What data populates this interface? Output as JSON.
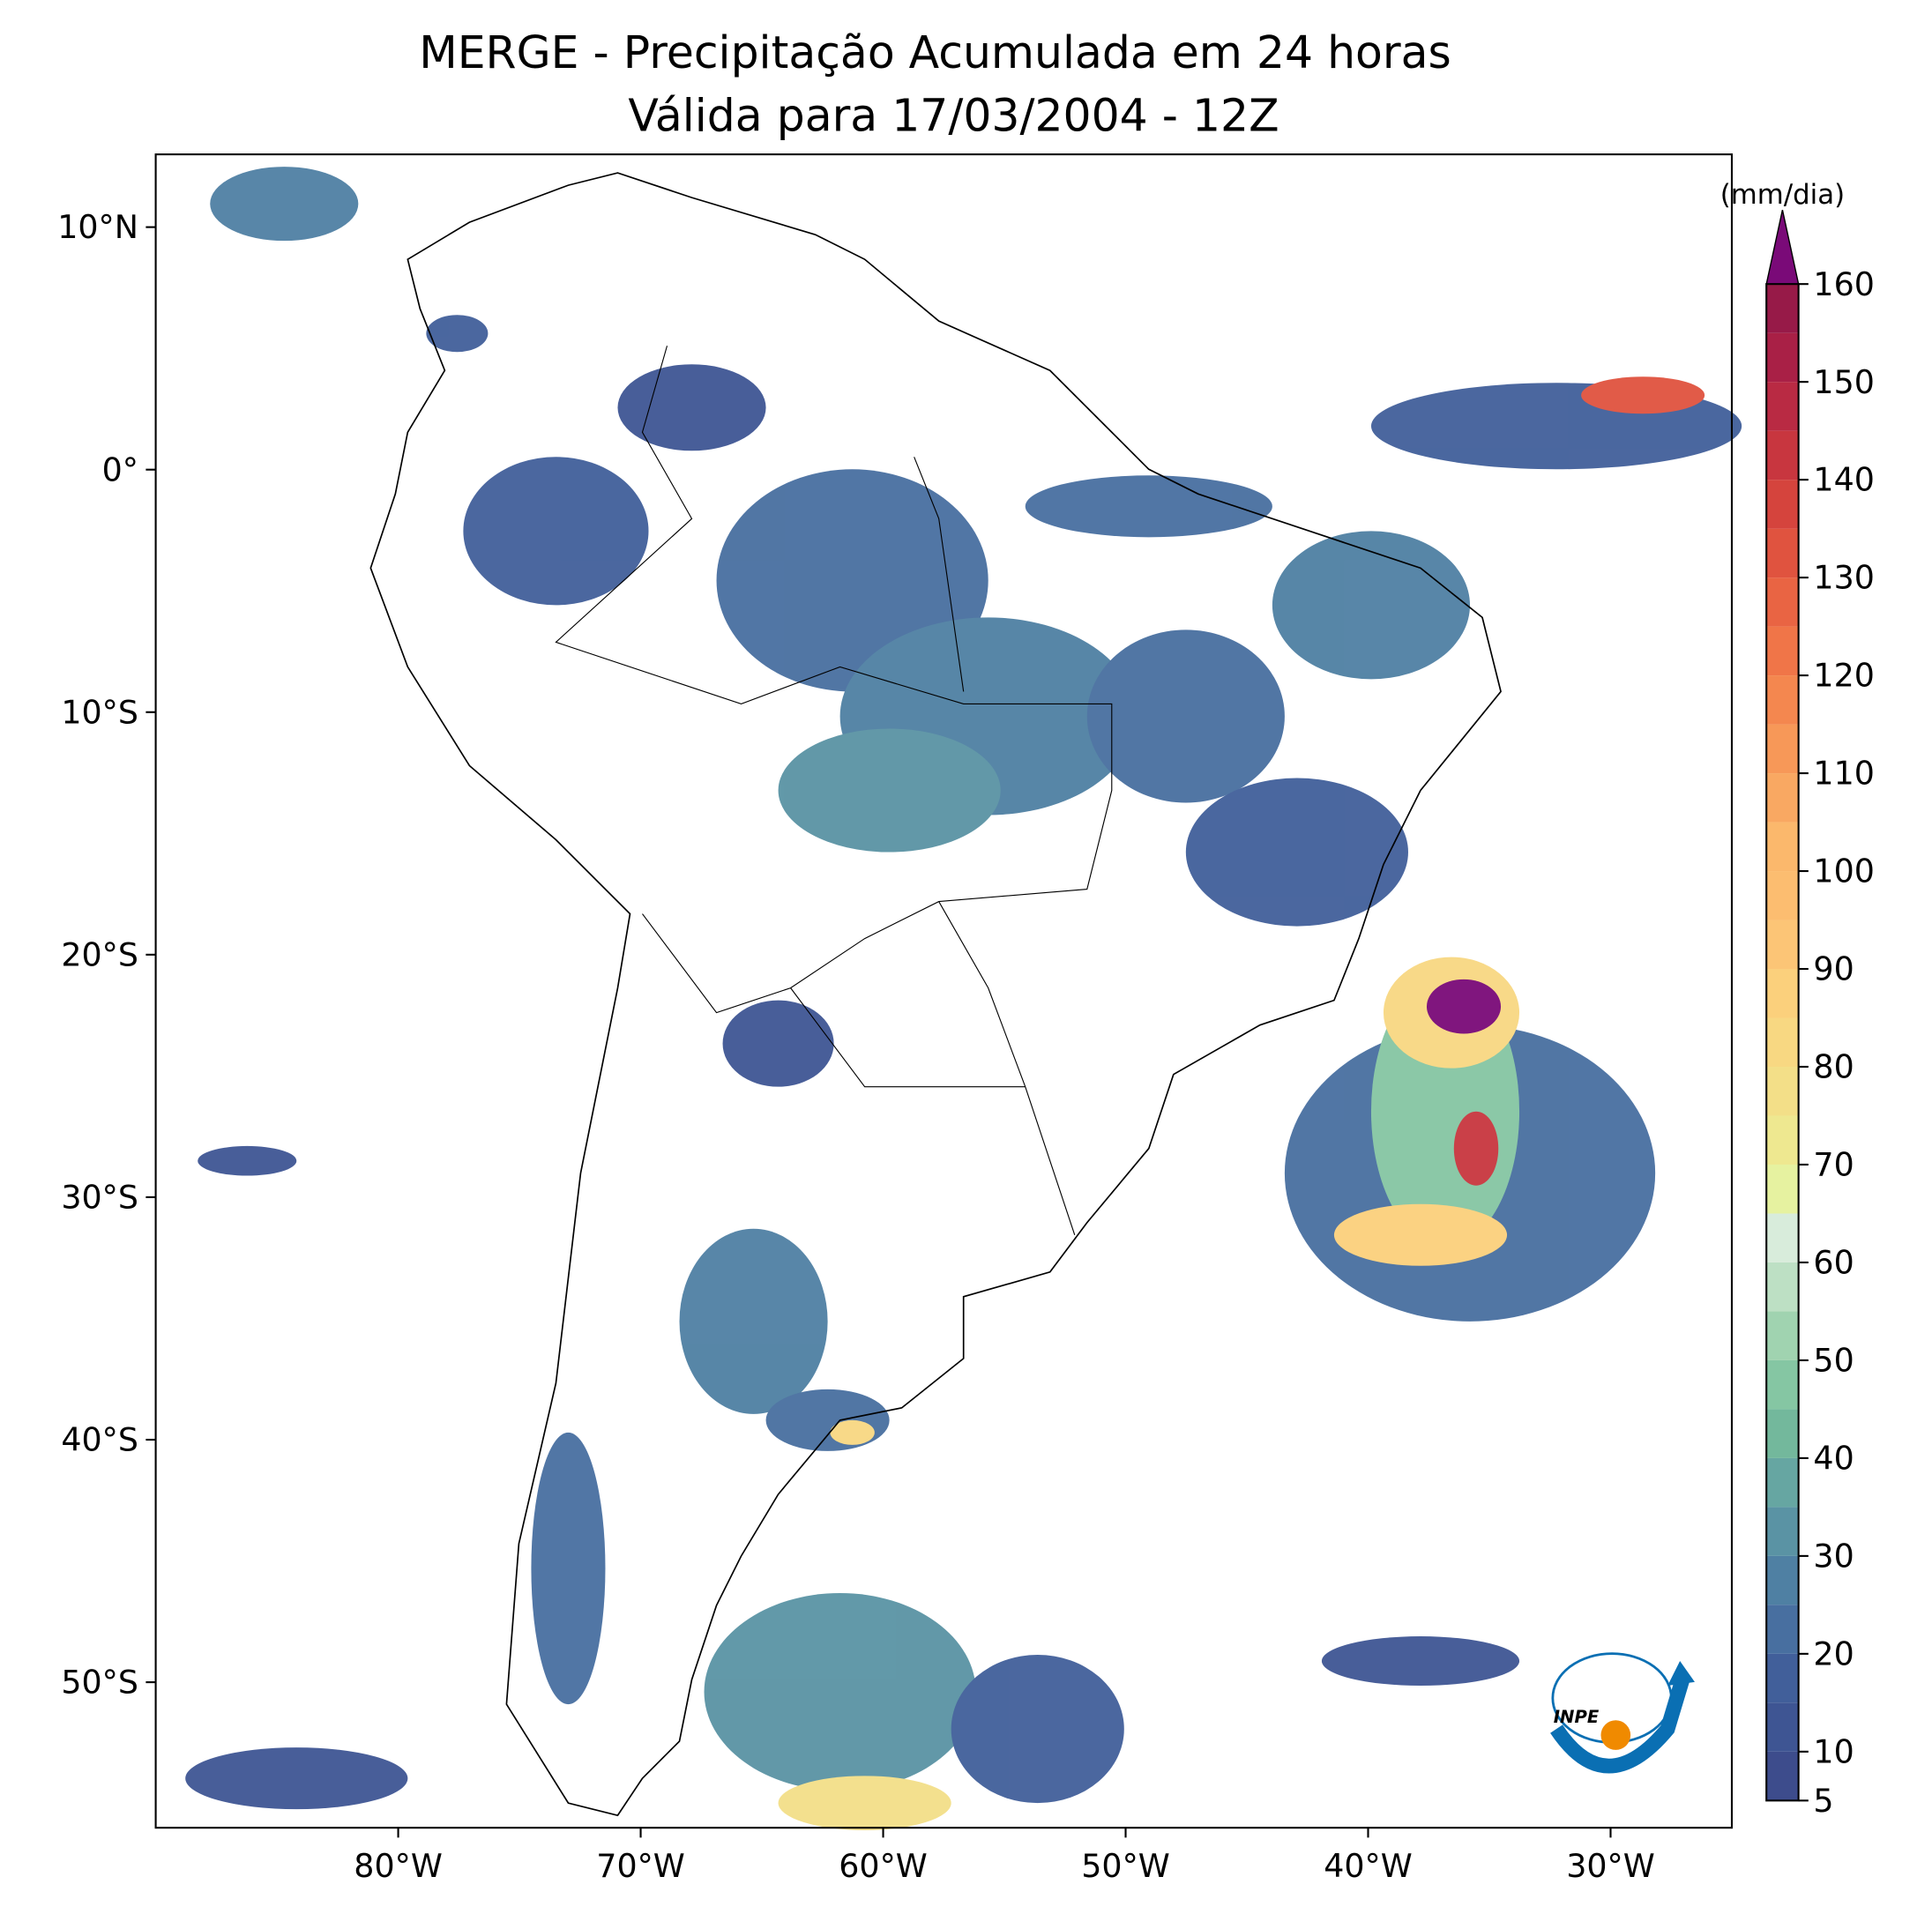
{
  "chart_data": {
    "type": "map",
    "title": "MERGE - Precipitação Acumulada em 24 horas",
    "subtitle": "Válida para 17/03/2004 - 12Z",
    "xlim": [
      -90,
      -25
    ],
    "ylim": [
      -56,
      13
    ],
    "xticks": [
      {
        "value": -80,
        "label": "80°W"
      },
      {
        "value": -70,
        "label": "70°W"
      },
      {
        "value": -60,
        "label": "60°W"
      },
      {
        "value": -50,
        "label": "50°W"
      },
      {
        "value": -40,
        "label": "40°W"
      },
      {
        "value": -30,
        "label": "30°W"
      }
    ],
    "yticks": [
      {
        "value": 10,
        "label": "10°N"
      },
      {
        "value": 0,
        "label": "0°"
      },
      {
        "value": -10,
        "label": "10°S"
      },
      {
        "value": -20,
        "label": "20°S"
      },
      {
        "value": -30,
        "label": "30°S"
      },
      {
        "value": -40,
        "label": "40°S"
      },
      {
        "value": -50,
        "label": "50°S"
      }
    ],
    "colorbar": {
      "label": "(mm/dia)",
      "lim": [
        5,
        160
      ],
      "ticks": [
        5,
        10,
        20,
        30,
        40,
        50,
        60,
        70,
        80,
        90,
        100,
        110,
        120,
        130,
        140,
        150,
        160
      ],
      "levels": [
        5,
        10,
        15,
        20,
        25,
        30,
        35,
        40,
        45,
        50,
        55,
        60,
        65,
        70,
        75,
        80,
        85,
        90,
        95,
        100,
        105,
        110,
        115,
        120,
        125,
        130,
        135,
        140,
        145,
        150,
        155,
        160
      ],
      "colors": [
        "#3d4c8c",
        "#3e5593",
        "#415f9a",
        "#486fa0",
        "#4f80a3",
        "#5a93a4",
        "#66a6a2",
        "#73b89c",
        "#85c6a3",
        "#a0d3b0",
        "#bde0c4",
        "#d8ecdb",
        "#e6f2a0",
        "#eee890",
        "#f3df88",
        "#f8d882",
        "#fbd07c",
        "#fcc576",
        "#fcbd70",
        "#fbb86c",
        "#f9a862",
        "#f79858",
        "#f4874f",
        "#f07548",
        "#e96443",
        "#e0533f",
        "#d5443d",
        "#c8363f",
        "#b92a43",
        "#a92046",
        "#971a48"
      ],
      "extend_color": "#7a0a78"
    },
    "logo": "INPE"
  }
}
